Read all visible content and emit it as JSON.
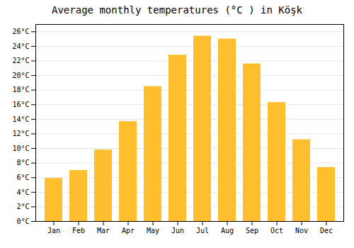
{
  "chart_data": {
    "type": "bar",
    "title": "Average monthly temperatures (°C ) in Köşk",
    "categories": [
      "Jan",
      "Feb",
      "Mar",
      "Apr",
      "May",
      "Jun",
      "Jul",
      "Aug",
      "Sep",
      "Oct",
      "Nov",
      "Dec"
    ],
    "values": [
      5.9,
      7.0,
      9.8,
      13.7,
      18.5,
      22.8,
      25.4,
      25.0,
      21.6,
      16.3,
      11.2,
      7.4
    ],
    "color": "#FFBE2D",
    "ylim": [
      0,
      27
    ],
    "yticks": [
      {
        "value": 0,
        "label": "0°C"
      },
      {
        "value": 2,
        "label": "2°C"
      },
      {
        "value": 4,
        "label": "4°C"
      },
      {
        "value": 6,
        "label": "6°C"
      },
      {
        "value": 8,
        "label": "8°C"
      },
      {
        "value": 10,
        "label": "10°C"
      },
      {
        "value": 12,
        "label": "12°C"
      },
      {
        "value": 14,
        "label": "14°C"
      },
      {
        "value": 16,
        "label": "16°C"
      },
      {
        "value": 18,
        "label": "18°C"
      },
      {
        "value": 20,
        "label": "20°C"
      },
      {
        "value": 22,
        "label": "22°C"
      },
      {
        "value": 24,
        "label": "24°C"
      },
      {
        "value": 26,
        "label": "26°C"
      }
    ],
    "grid": true
  }
}
